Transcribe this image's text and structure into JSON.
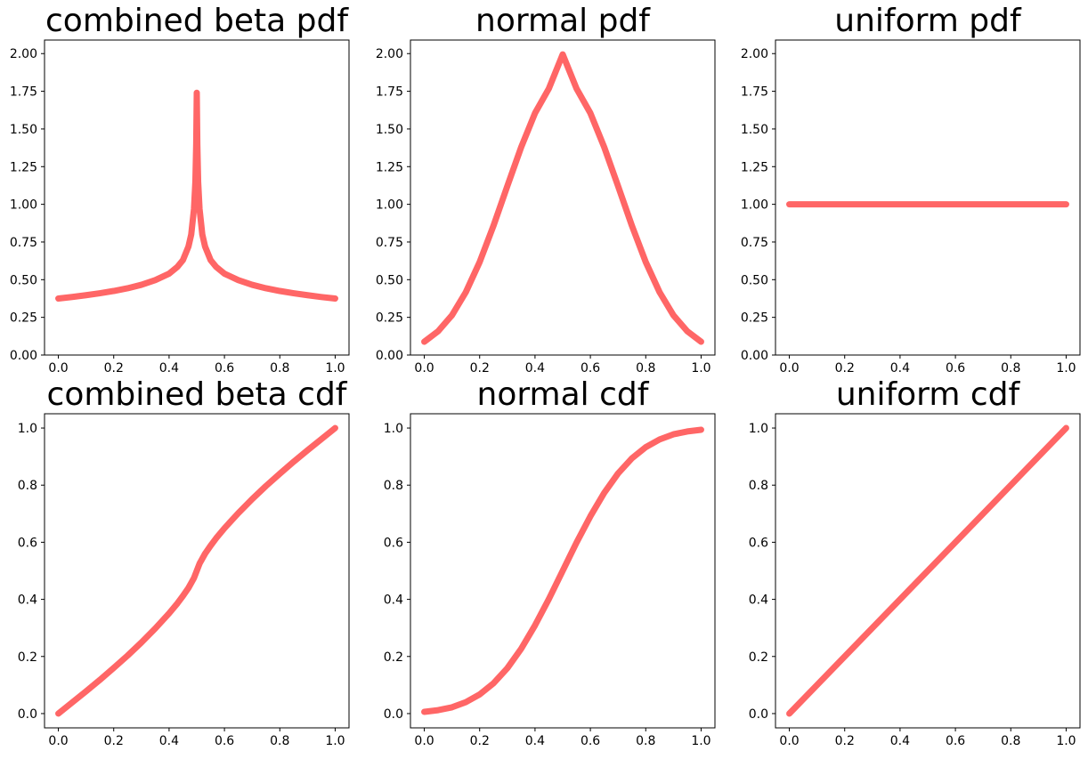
{
  "figure": {
    "line_color": "#ff6666",
    "background": "#ffffff",
    "layout": "2x3 grid"
  },
  "chart_data": [
    {
      "type": "line",
      "title": "combined beta pdf",
      "xlabel": "",
      "ylabel": "",
      "xlim": [
        -0.05,
        1.05
      ],
      "ylim": [
        0.0,
        2.09
      ],
      "xticks": [
        0.0,
        0.2,
        0.4,
        0.6,
        0.8,
        1.0
      ],
      "xtick_labels": [
        "0.0",
        "0.2",
        "0.4",
        "0.6",
        "0.8",
        "1.0"
      ],
      "yticks": [
        0.0,
        0.25,
        0.5,
        0.75,
        1.0,
        1.25,
        1.5,
        1.75,
        2.0
      ],
      "ytick_labels": [
        "0.00",
        "0.25",
        "0.50",
        "0.75",
        "1.00",
        "1.25",
        "1.50",
        "1.75",
        "2.00"
      ],
      "series": [
        {
          "name": "combined beta pdf",
          "color": "#ff6666",
          "x": [
            0.0,
            0.05,
            0.1,
            0.15,
            0.2,
            0.25,
            0.3,
            0.35,
            0.4,
            0.43,
            0.45,
            0.47,
            0.48,
            0.49,
            0.495,
            0.498,
            0.5,
            0.502,
            0.505,
            0.51,
            0.52,
            0.53,
            0.55,
            0.57,
            0.6,
            0.65,
            0.7,
            0.75,
            0.8,
            0.85,
            0.9,
            0.95,
            1.0
          ],
          "y": [
            0.375,
            0.385,
            0.397,
            0.41,
            0.425,
            0.443,
            0.466,
            0.497,
            0.54,
            0.585,
            0.63,
            0.72,
            0.8,
            0.97,
            1.15,
            1.4,
            1.74,
            1.4,
            1.15,
            0.97,
            0.8,
            0.72,
            0.63,
            0.585,
            0.54,
            0.497,
            0.466,
            0.443,
            0.425,
            0.41,
            0.397,
            0.385,
            0.375
          ]
        }
      ]
    },
    {
      "type": "line",
      "title": "normal pdf",
      "xlabel": "",
      "ylabel": "",
      "xlim": [
        -0.05,
        1.05
      ],
      "ylim": [
        0.0,
        2.09
      ],
      "xticks": [
        0.0,
        0.2,
        0.4,
        0.6,
        0.8,
        1.0
      ],
      "xtick_labels": [
        "0.0",
        "0.2",
        "0.4",
        "0.6",
        "0.8",
        "1.0"
      ],
      "yticks": [
        0.0,
        0.25,
        0.5,
        0.75,
        1.0,
        1.25,
        1.5,
        1.75,
        2.0
      ],
      "ytick_labels": [
        "0.00",
        "0.25",
        "0.50",
        "0.75",
        "1.00",
        "1.25",
        "1.50",
        "1.75",
        "2.00"
      ],
      "series": [
        {
          "name": "normal pdf",
          "color": "#ff6666",
          "x": [
            0.0,
            0.05,
            0.1,
            0.15,
            0.2,
            0.25,
            0.3,
            0.35,
            0.4,
            0.45,
            0.5,
            0.55,
            0.6,
            0.65,
            0.7,
            0.75,
            0.8,
            0.85,
            0.9,
            0.95,
            1.0
          ],
          "y": [
            0.088,
            0.158,
            0.264,
            0.417,
            0.617,
            0.858,
            1.121,
            1.379,
            1.605,
            1.768,
            1.995,
            1.768,
            1.605,
            1.379,
            1.121,
            0.858,
            0.617,
            0.417,
            0.264,
            0.158,
            0.088
          ]
        }
      ]
    },
    {
      "type": "line",
      "title": "uniform pdf",
      "xlabel": "",
      "ylabel": "",
      "xlim": [
        -0.05,
        1.05
      ],
      "ylim": [
        0.0,
        2.09
      ],
      "xticks": [
        0.0,
        0.2,
        0.4,
        0.6,
        0.8,
        1.0
      ],
      "xtick_labels": [
        "0.0",
        "0.2",
        "0.4",
        "0.6",
        "0.8",
        "1.0"
      ],
      "yticks": [
        0.0,
        0.25,
        0.5,
        0.75,
        1.0,
        1.25,
        1.5,
        1.75,
        2.0
      ],
      "ytick_labels": [
        "0.00",
        "0.25",
        "0.50",
        "0.75",
        "1.00",
        "1.25",
        "1.50",
        "1.75",
        "2.00"
      ],
      "series": [
        {
          "name": "uniform pdf",
          "color": "#ff6666",
          "x": [
            0.0,
            1.0
          ],
          "y": [
            1.0,
            1.0
          ]
        }
      ]
    },
    {
      "type": "line",
      "title": "combined beta cdf",
      "xlabel": "",
      "ylabel": "",
      "xlim": [
        -0.05,
        1.05
      ],
      "ylim": [
        -0.05,
        1.05
      ],
      "xticks": [
        0.0,
        0.2,
        0.4,
        0.6,
        0.8,
        1.0
      ],
      "xtick_labels": [
        "0.0",
        "0.2",
        "0.4",
        "0.6",
        "0.8",
        "1.0"
      ],
      "yticks": [
        0.0,
        0.2,
        0.4,
        0.6,
        0.8,
        1.0
      ],
      "ytick_labels": [
        "0.0",
        "0.2",
        "0.4",
        "0.6",
        "0.8",
        "1.0"
      ],
      "series": [
        {
          "name": "combined beta cdf",
          "color": "#ff6666",
          "x": [
            0.0,
            0.05,
            0.1,
            0.15,
            0.2,
            0.25,
            0.3,
            0.35,
            0.4,
            0.43,
            0.45,
            0.47,
            0.49,
            0.5,
            0.51,
            0.53,
            0.55,
            0.57,
            0.6,
            0.65,
            0.7,
            0.75,
            0.8,
            0.85,
            0.9,
            0.95,
            1.0
          ],
          "y": [
            0.0,
            0.039,
            0.078,
            0.118,
            0.16,
            0.203,
            0.249,
            0.298,
            0.351,
            0.386,
            0.412,
            0.44,
            0.475,
            0.5,
            0.525,
            0.56,
            0.588,
            0.614,
            0.649,
            0.702,
            0.751,
            0.797,
            0.84,
            0.882,
            0.922,
            0.961,
            1.0
          ]
        }
      ]
    },
    {
      "type": "line",
      "title": "normal cdf",
      "xlabel": "",
      "ylabel": "",
      "xlim": [
        -0.05,
        1.05
      ],
      "ylim": [
        -0.05,
        1.05
      ],
      "xticks": [
        0.0,
        0.2,
        0.4,
        0.6,
        0.8,
        1.0
      ],
      "xtick_labels": [
        "0.0",
        "0.2",
        "0.4",
        "0.6",
        "0.8",
        "1.0"
      ],
      "yticks": [
        0.0,
        0.2,
        0.4,
        0.6,
        0.8,
        1.0
      ],
      "ytick_labels": [
        "0.0",
        "0.2",
        "0.4",
        "0.6",
        "0.8",
        "1.0"
      ],
      "series": [
        {
          "name": "normal cdf",
          "color": "#ff6666",
          "x": [
            0.0,
            0.05,
            0.1,
            0.15,
            0.2,
            0.25,
            0.3,
            0.35,
            0.4,
            0.45,
            0.5,
            0.55,
            0.6,
            0.65,
            0.7,
            0.75,
            0.8,
            0.85,
            0.9,
            0.95,
            1.0
          ],
          "y": [
            0.006,
            0.012,
            0.022,
            0.04,
            0.067,
            0.106,
            0.159,
            0.227,
            0.309,
            0.401,
            0.5,
            0.599,
            0.691,
            0.773,
            0.841,
            0.894,
            0.933,
            0.96,
            0.978,
            0.988,
            0.994
          ]
        }
      ]
    },
    {
      "type": "line",
      "title": "uniform cdf",
      "xlabel": "",
      "ylabel": "",
      "xlim": [
        -0.05,
        1.05
      ],
      "ylim": [
        -0.05,
        1.05
      ],
      "xticks": [
        0.0,
        0.2,
        0.4,
        0.6,
        0.8,
        1.0
      ],
      "xtick_labels": [
        "0.0",
        "0.2",
        "0.4",
        "0.6",
        "0.8",
        "1.0"
      ],
      "yticks": [
        0.0,
        0.2,
        0.4,
        0.6,
        0.8,
        1.0
      ],
      "ytick_labels": [
        "0.0",
        "0.2",
        "0.4",
        "0.6",
        "0.8",
        "1.0"
      ],
      "series": [
        {
          "name": "uniform cdf",
          "color": "#ff6666",
          "x": [
            0.0,
            1.0
          ],
          "y": [
            0.0,
            1.0
          ]
        }
      ]
    }
  ]
}
